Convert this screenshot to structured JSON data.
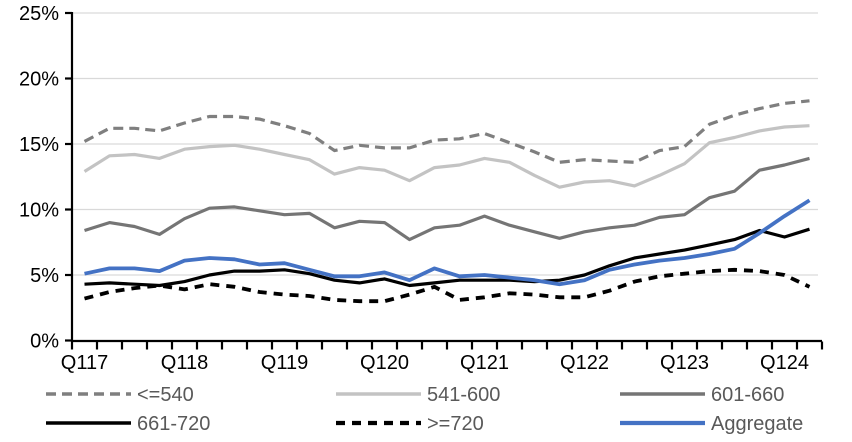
{
  "chart_data": {
    "type": "line",
    "title": "",
    "xlabel": "",
    "ylabel": "",
    "grid": true,
    "legend_position": "bottom",
    "ylim": [
      0,
      25
    ],
    "ytick_step": 5,
    "ytick_labels": [
      "0%",
      "5%",
      "10%",
      "15%",
      "20%",
      "25%"
    ],
    "x_labels": [
      "Q117",
      "Q118",
      "Q119",
      "Q120",
      "Q121",
      "Q122",
      "Q123",
      "Q124"
    ],
    "x_label_point_index": [
      0,
      4,
      8,
      12,
      16,
      20,
      24,
      28
    ],
    "n_points": 30,
    "axis_color": "#000000",
    "gridline_color": "#d9d9d9",
    "legend_text_color": "#595959",
    "series": [
      {
        "name": "<=540",
        "color": "#7f7f7f",
        "style": "dashed",
        "values": [
          15.2,
          16.2,
          16.2,
          16.0,
          16.6,
          17.1,
          17.1,
          16.9,
          16.4,
          15.8,
          14.5,
          14.9,
          14.7,
          14.7,
          15.3,
          15.4,
          15.8,
          15.1,
          14.4,
          13.6,
          13.8,
          13.7,
          13.6,
          14.5,
          14.8,
          16.5,
          17.2,
          17.7,
          18.1,
          18.3
        ]
      },
      {
        "name": "541-600",
        "color": "#c3c3c3",
        "style": "solid",
        "values": [
          12.9,
          14.1,
          14.2,
          13.9,
          14.6,
          14.8,
          14.9,
          14.6,
          14.2,
          13.8,
          12.7,
          13.2,
          13.0,
          12.2,
          13.2,
          13.4,
          13.9,
          13.6,
          12.6,
          11.7,
          12.1,
          12.2,
          11.8,
          12.6,
          13.5,
          15.1,
          15.5,
          16.0,
          16.3,
          16.4
        ]
      },
      {
        "name": "601-660",
        "color": "#757575",
        "style": "solid",
        "values": [
          8.4,
          9.0,
          8.7,
          8.1,
          9.3,
          10.1,
          10.2,
          9.9,
          9.6,
          9.7,
          8.6,
          9.1,
          9.0,
          7.7,
          8.6,
          8.8,
          9.5,
          8.8,
          8.3,
          7.8,
          8.3,
          8.6,
          8.8,
          9.4,
          9.6,
          10.9,
          11.4,
          13.0,
          13.4,
          13.9
        ]
      },
      {
        "name": "661-720",
        "color": "#000000",
        "style": "solid",
        "values": [
          4.3,
          4.4,
          4.3,
          4.2,
          4.5,
          5.0,
          5.3,
          5.3,
          5.4,
          5.1,
          4.6,
          4.4,
          4.7,
          4.2,
          4.4,
          4.6,
          4.6,
          4.6,
          4.5,
          4.6,
          5.0,
          5.7,
          6.3,
          6.6,
          6.9,
          7.3,
          7.7,
          8.4,
          7.9,
          8.5
        ]
      },
      {
        "name": ">=720",
        "color": "#000000",
        "style": "dashed",
        "values": [
          3.2,
          3.7,
          4.0,
          4.2,
          3.9,
          4.3,
          4.1,
          3.7,
          3.5,
          3.4,
          3.1,
          3.0,
          3.0,
          3.5,
          4.1,
          3.1,
          3.3,
          3.6,
          3.5,
          3.3,
          3.3,
          3.8,
          4.5,
          4.9,
          5.1,
          5.3,
          5.4,
          5.3,
          5.0,
          4.1
        ]
      },
      {
        "name": "Aggregate",
        "color": "#4472c4",
        "style": "solid",
        "values": [
          5.1,
          5.5,
          5.5,
          5.3,
          6.1,
          6.3,
          6.2,
          5.8,
          5.9,
          5.4,
          4.9,
          4.9,
          5.2,
          4.6,
          5.5,
          4.9,
          5.0,
          4.8,
          4.6,
          4.3,
          4.6,
          5.4,
          5.8,
          6.1,
          6.3,
          6.6,
          7.0,
          8.2,
          9.5,
          10.7
        ]
      }
    ],
    "legend_rows": [
      [
        "<=540",
        "541-600",
        "601-660"
      ],
      [
        "661-720",
        ">=720",
        "Aggregate"
      ]
    ]
  }
}
